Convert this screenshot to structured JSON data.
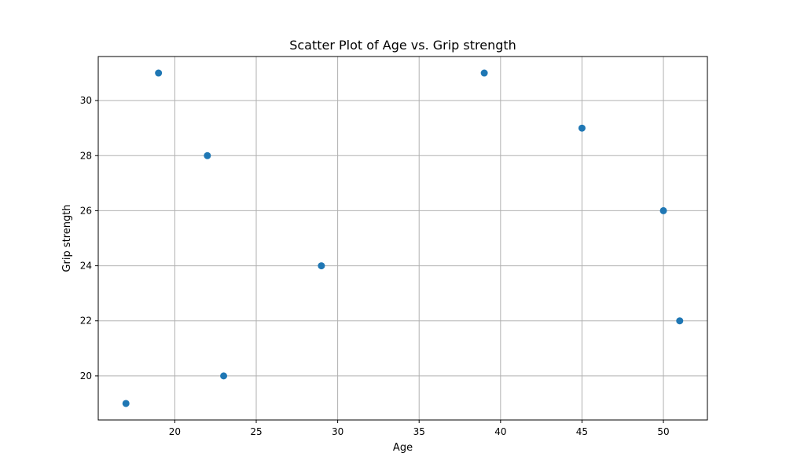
{
  "chart_data": {
    "type": "scatter",
    "title": "Scatter Plot of Age vs. Grip strength",
    "xlabel": "Age",
    "ylabel": "Grip strength",
    "xlim": [
      15.3,
      52.7
    ],
    "ylim": [
      18.4,
      31.6
    ],
    "xticks": [
      20,
      25,
      30,
      35,
      40,
      45,
      50
    ],
    "yticks": [
      20,
      22,
      24,
      26,
      28,
      30
    ],
    "grid": true,
    "marker_color": "#1f77b4",
    "points": [
      {
        "x": 17,
        "y": 19
      },
      {
        "x": 19,
        "y": 31
      },
      {
        "x": 22,
        "y": 28
      },
      {
        "x": 23,
        "y": 20
      },
      {
        "x": 29,
        "y": 24
      },
      {
        "x": 39,
        "y": 31
      },
      {
        "x": 45,
        "y": 29
      },
      {
        "x": 50,
        "y": 26
      },
      {
        "x": 51,
        "y": 22
      }
    ]
  }
}
